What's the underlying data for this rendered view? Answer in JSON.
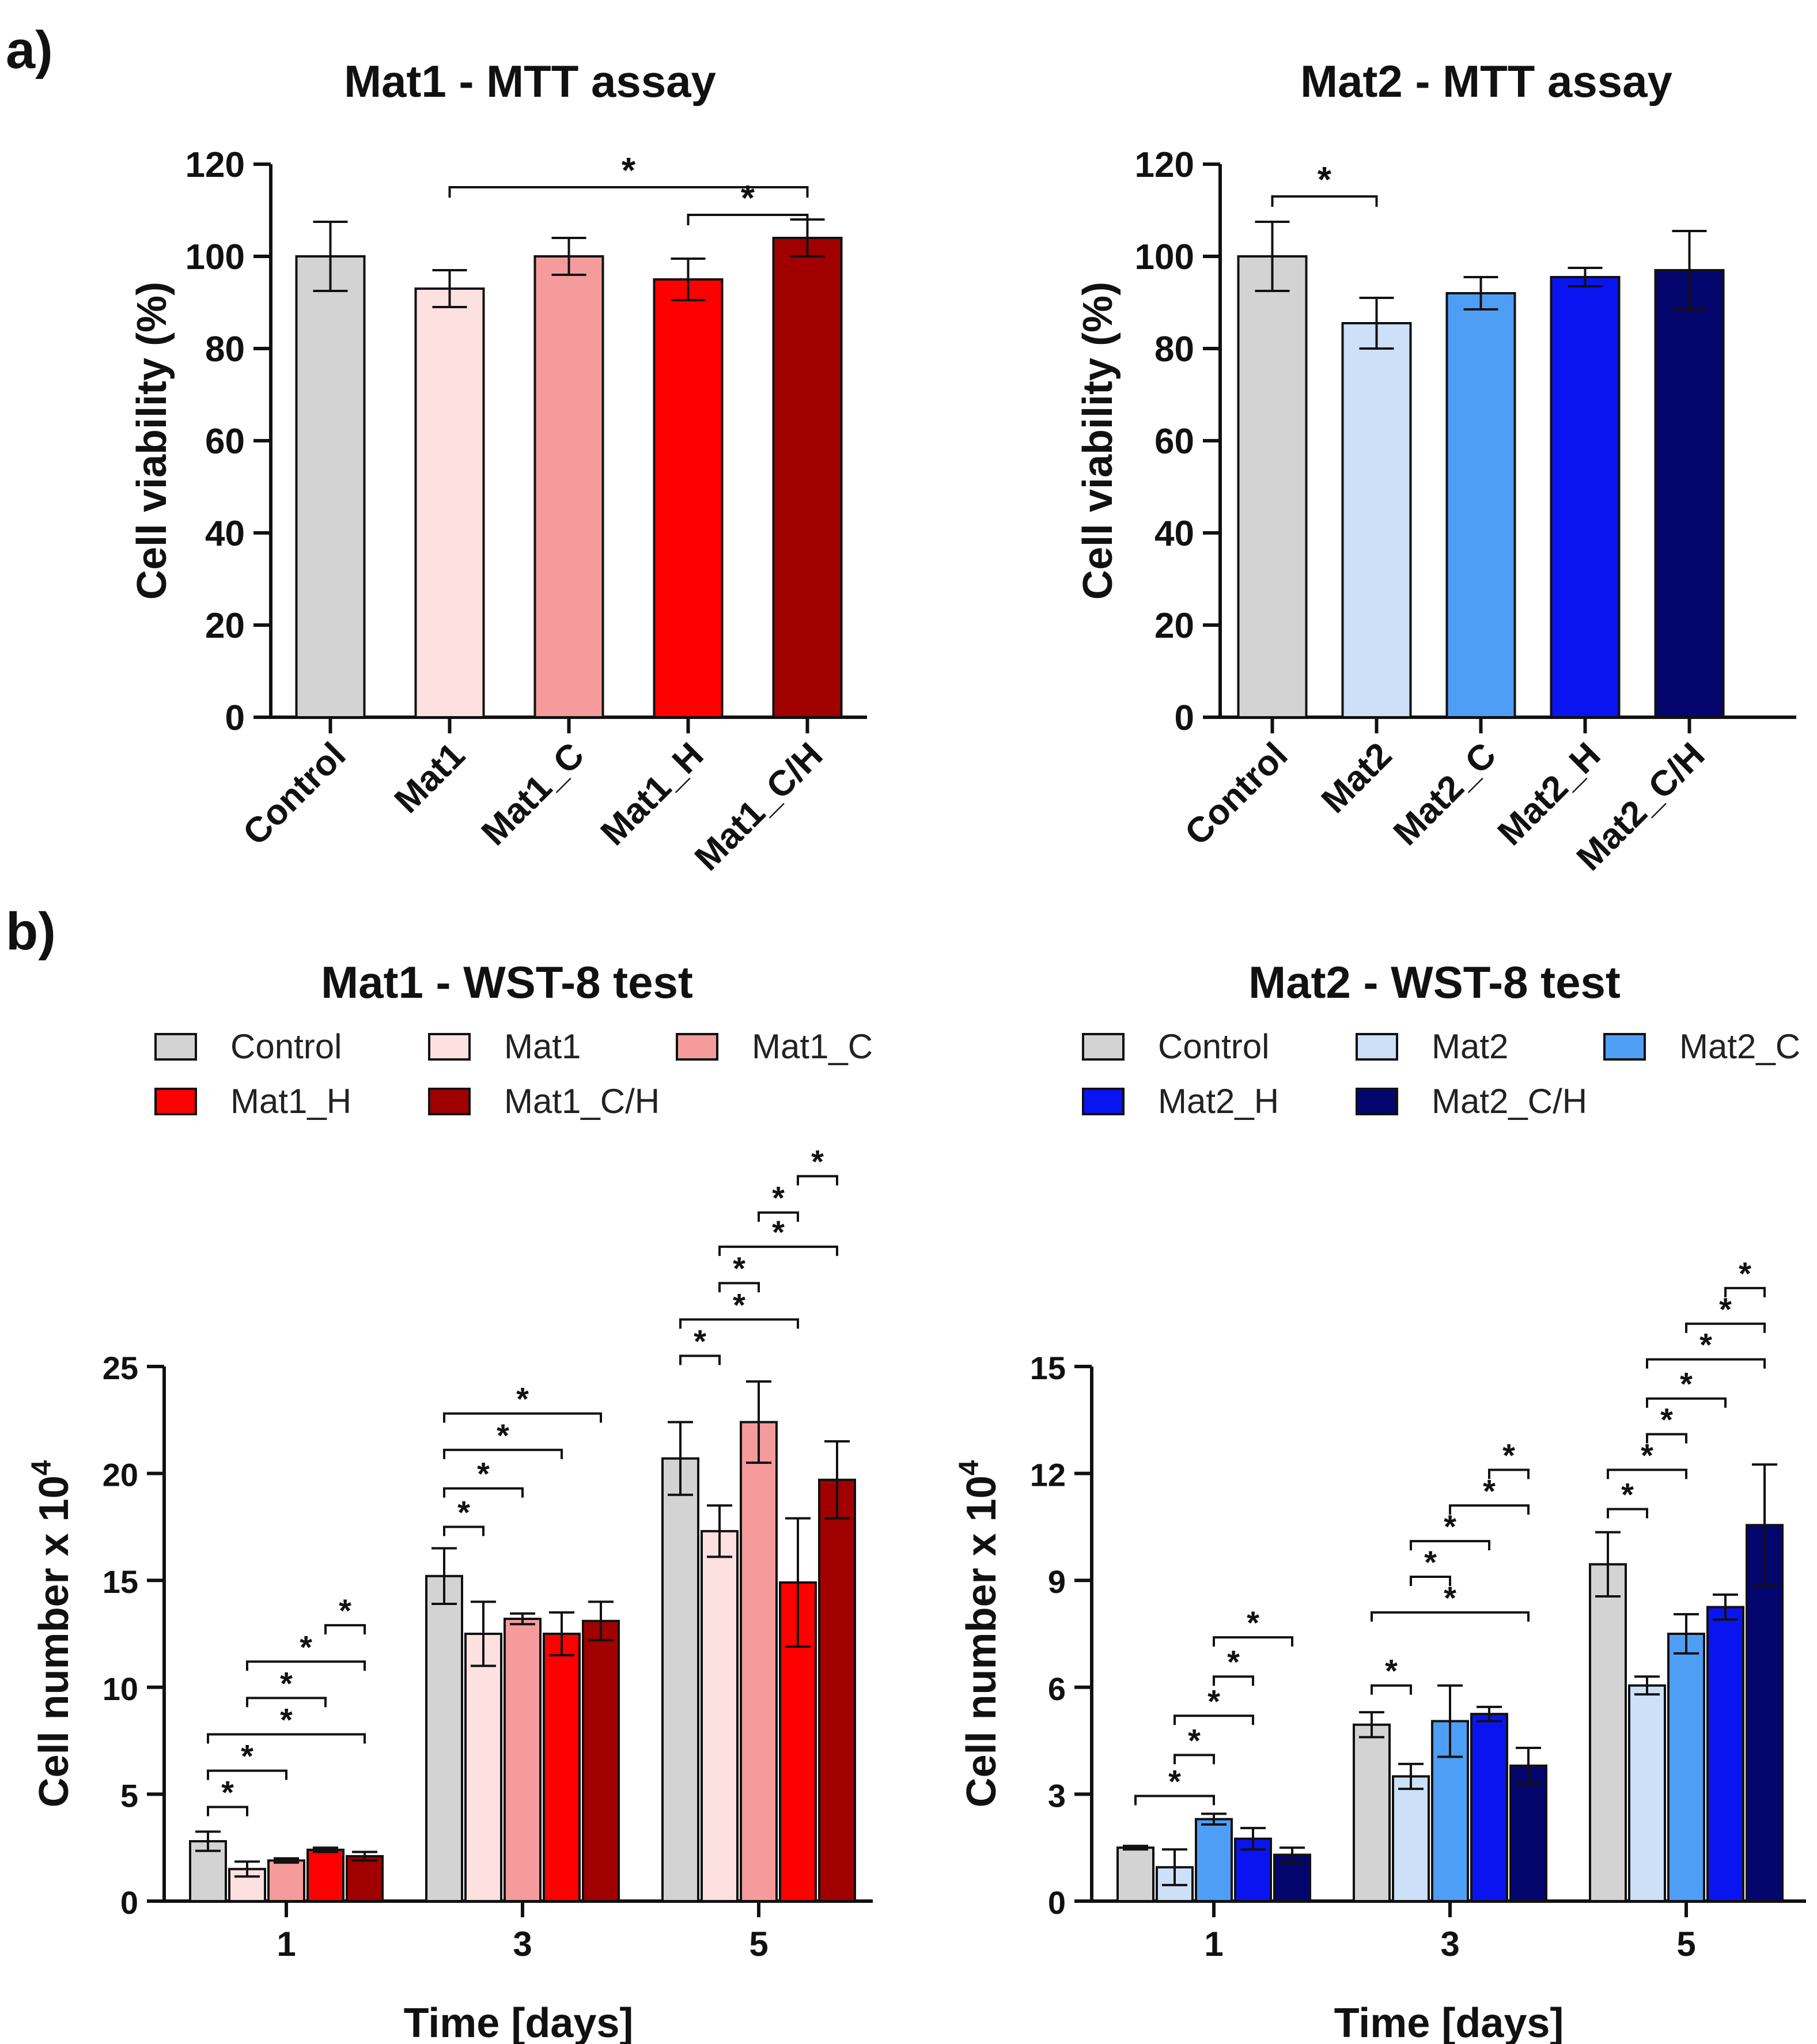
{
  "panel_labels": {
    "a": "a)",
    "b": "b)"
  },
  "chart_data": [
    {
      "id": "mat1_mtt",
      "type": "bar",
      "title": "Mat1 - MTT assay",
      "xlabel": "",
      "ylabel": "Cell viability (%)",
      "ylim": [
        0,
        120
      ],
      "yticks": [
        0,
        20,
        40,
        60,
        80,
        100,
        120
      ],
      "categories": [
        "Control",
        "Mat1",
        "Mat1_C",
        "Mat1_H",
        "Mat1_C/H"
      ],
      "values": [
        100,
        93,
        100,
        95,
        104
      ],
      "errors": [
        7.5,
        4,
        4,
        4.5,
        4
      ],
      "colors": [
        "#d3d3d3",
        "#fde0e0",
        "#f59b9b",
        "#ff0000",
        "#a00000"
      ],
      "significance": [
        {
          "from": 1,
          "to": 4,
          "y": 115,
          "label": "*"
        },
        {
          "from": 3,
          "to": 4,
          "y": 109,
          "label": "*"
        }
      ]
    },
    {
      "id": "mat2_mtt",
      "type": "bar",
      "title": "Mat2 - MTT assay",
      "xlabel": "",
      "ylabel": "Cell viability (%)",
      "ylim": [
        0,
        120
      ],
      "yticks": [
        0,
        20,
        40,
        60,
        80,
        100,
        120
      ],
      "categories": [
        "Control",
        "Mat2",
        "Mat2_C",
        "Mat2_H",
        "Mat2_C/H"
      ],
      "values": [
        100,
        85.5,
        92,
        95.5,
        97
      ],
      "errors": [
        7.5,
        5.5,
        3.5,
        2,
        8.5
      ],
      "colors": [
        "#d3d3d3",
        "#cce0f8",
        "#4f9ef5",
        "#0a14f0",
        "#05056e"
      ],
      "significance": [
        {
          "from": 0,
          "to": 1,
          "y": 113,
          "label": "*"
        }
      ]
    },
    {
      "id": "mat1_wst8",
      "type": "bar",
      "title": "Mat1 - WST-8 test",
      "xlabel": "Time [days]",
      "ylabel": "Cell number x 10",
      "ylabel_sup": "4",
      "ylim": [
        0,
        25
      ],
      "yticks": [
        0,
        5,
        10,
        15,
        20,
        25
      ],
      "categories": [
        "1",
        "3",
        "5"
      ],
      "series": [
        {
          "name": "Control",
          "values": [
            2.8,
            15.2,
            20.7
          ],
          "errors": [
            0.45,
            1.3,
            1.7
          ],
          "color": "#d3d3d3"
        },
        {
          "name": "Mat1",
          "values": [
            1.5,
            12.5,
            17.3
          ],
          "errors": [
            0.35,
            1.5,
            1.2
          ],
          "color": "#fde0e0"
        },
        {
          "name": "Mat1_C",
          "values": [
            1.9,
            13.2,
            22.4
          ],
          "errors": [
            0.1,
            0.25,
            1.9
          ],
          "color": "#f59b9b"
        },
        {
          "name": "Mat1_H",
          "values": [
            2.4,
            12.5,
            14.9
          ],
          "errors": [
            0.1,
            1.0,
            3.0
          ],
          "color": "#ff0000"
        },
        {
          "name": "Mat1_C/H",
          "values": [
            2.1,
            13.1,
            19.7
          ],
          "errors": [
            0.2,
            0.9,
            1.8
          ],
          "color": "#a00000"
        }
      ],
      "significance": [
        {
          "group": 0,
          "from": 0,
          "to": 1,
          "y": 4.4,
          "label": "*"
        },
        {
          "group": 0,
          "from": 0,
          "to": 2,
          "y": 6.1,
          "label": "*"
        },
        {
          "group": 0,
          "from": 0,
          "to": 4,
          "y": 7.8,
          "label": "*"
        },
        {
          "group": 0,
          "from": 1,
          "to": 3,
          "y": 9.5,
          "label": "*"
        },
        {
          "group": 0,
          "from": 1,
          "to": 4,
          "y": 11.2,
          "label": "*"
        },
        {
          "group": 0,
          "from": 3,
          "to": 4,
          "y": 12.9,
          "label": "*"
        },
        {
          "group": 1,
          "from": 0,
          "to": 1,
          "y": 17.5,
          "label": "*"
        },
        {
          "group": 1,
          "from": 0,
          "to": 2,
          "y": 19.3,
          "label": "*"
        },
        {
          "group": 1,
          "from": 0,
          "to": 3,
          "y": 21.1,
          "label": "*"
        },
        {
          "group": 1,
          "from": 0,
          "to": 4,
          "y": 22.8,
          "label": "*"
        },
        {
          "group": 2,
          "from": 0,
          "to": 1,
          "y": 25.5,
          "label": "*"
        },
        {
          "group": 2,
          "from": 0,
          "to": 3,
          "y": 27.2,
          "label": "*"
        },
        {
          "group": 2,
          "from": 1,
          "to": 2,
          "y": 28.9,
          "label": "*"
        },
        {
          "group": 2,
          "from": 1,
          "to": 4,
          "y": 30.6,
          "label": "*"
        },
        {
          "group": 2,
          "from": 2,
          "to": 3,
          "y": 32.2,
          "label": "*"
        },
        {
          "group": 2,
          "from": 3,
          "to": 4,
          "y": 33.9,
          "label": "*"
        }
      ],
      "legend": "top"
    },
    {
      "id": "mat2_wst8",
      "type": "bar",
      "title": "Mat2 - WST-8 test",
      "xlabel": "Time [days]",
      "ylabel": "Cell number x 10",
      "ylabel_sup": "4",
      "ylim": [
        0,
        15
      ],
      "yticks": [
        0,
        3,
        6,
        9,
        12,
        15
      ],
      "categories": [
        "1",
        "3",
        "5"
      ],
      "series": [
        {
          "name": "Control",
          "values": [
            1.5,
            4.95,
            9.45
          ],
          "errors": [
            0.05,
            0.35,
            0.9
          ],
          "color": "#d3d3d3"
        },
        {
          "name": "Mat2",
          "values": [
            0.95,
            3.5,
            6.05
          ],
          "errors": [
            0.5,
            0.35,
            0.25
          ],
          "color": "#cce0f8"
        },
        {
          "name": "Mat2_C",
          "values": [
            2.3,
            5.05,
            7.5
          ],
          "errors": [
            0.15,
            1.0,
            0.55
          ],
          "color": "#4f9ef5"
        },
        {
          "name": "Mat2_H",
          "values": [
            1.75,
            5.25,
            8.25
          ],
          "errors": [
            0.3,
            0.2,
            0.35
          ],
          "color": "#0a14f0"
        },
        {
          "name": "Mat2_C/H",
          "values": [
            1.3,
            3.8,
            10.55
          ],
          "errors": [
            0.2,
            0.5,
            1.7
          ],
          "color": "#05056e"
        }
      ],
      "significance": [
        {
          "group": 0,
          "from": 0,
          "to": 2,
          "y": 2.95,
          "label": "*"
        },
        {
          "group": 0,
          "from": 1,
          "to": 2,
          "y": 4.1,
          "label": "*"
        },
        {
          "group": 0,
          "from": 1,
          "to": 3,
          "y": 5.2,
          "label": "*"
        },
        {
          "group": 0,
          "from": 2,
          "to": 3,
          "y": 6.3,
          "label": "*"
        },
        {
          "group": 0,
          "from": 2,
          "to": 4,
          "y": 7.4,
          "label": "*"
        },
        {
          "group": 1,
          "from": 0,
          "to": 1,
          "y": 6.05,
          "label": "*"
        },
        {
          "group": 1,
          "from": 0,
          "to": 4,
          "y": 8.1,
          "label": "*"
        },
        {
          "group": 1,
          "from": 1,
          "to": 2,
          "y": 9.1,
          "label": "*"
        },
        {
          "group": 1,
          "from": 1,
          "to": 3,
          "y": 10.1,
          "label": "*"
        },
        {
          "group": 1,
          "from": 2,
          "to": 4,
          "y": 11.1,
          "label": "*"
        },
        {
          "group": 1,
          "from": 3,
          "to": 4,
          "y": 12.1,
          "label": "*"
        },
        {
          "group": 2,
          "from": 0,
          "to": 1,
          "y": 11.0,
          "label": "*"
        },
        {
          "group": 2,
          "from": 0,
          "to": 2,
          "y": 12.1,
          "label": "*"
        },
        {
          "group": 2,
          "from": 1,
          "to": 2,
          "y": 13.1,
          "label": "*"
        },
        {
          "group": 2,
          "from": 1,
          "to": 3,
          "y": 14.1,
          "label": "*"
        },
        {
          "group": 2,
          "from": 1,
          "to": 4,
          "y": 15.2,
          "label": "*"
        },
        {
          "group": 2,
          "from": 2,
          "to": 4,
          "y": 16.2,
          "label": "*"
        },
        {
          "group": 2,
          "from": 3,
          "to": 4,
          "y": 17.2,
          "label": "*"
        }
      ],
      "legend": "top"
    }
  ]
}
